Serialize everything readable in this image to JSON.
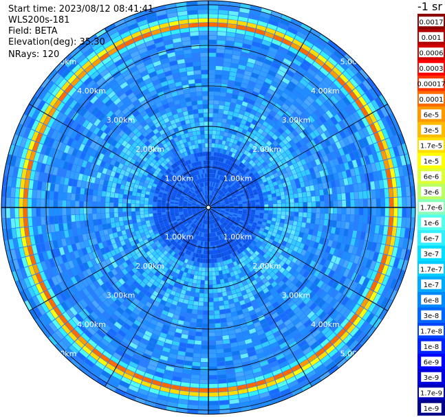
{
  "header": {
    "start_time": "Start time: 2023/08/12 08:41:41",
    "station": "WLS200s-181",
    "field": "Field: BETA",
    "elevation": "Elevation(deg): 35.30",
    "nrays": "NRays: 120"
  },
  "colorbar": {
    "title": "-1 sr",
    "labels": [
      "0.0017",
      "0.001",
      "0.0006",
      "0.0003",
      "0.00017",
      "0.0001",
      "6e-5",
      "3e-5",
      "1.7e-5",
      "1e-5",
      "6e-6",
      "3e-6",
      "1.7e-6",
      "1e-6",
      "6e-7",
      "3e-7",
      "1.7e-7",
      "1e-7",
      "6e-8",
      "3e-8",
      "1.7e-8",
      "1e-8",
      "6e-9",
      "3e-9",
      "1.7e-9",
      "1e-9"
    ],
    "colors": [
      "#8b0000",
      "#b30000",
      "#d40000",
      "#ff0000",
      "#ff3300",
      "#ff6a00",
      "#ff9900",
      "#ffbb00",
      "#ffdd00",
      "#ffff00",
      "#ddff33",
      "#bbff66",
      "#88ffbb",
      "#55ffee",
      "#33eeff",
      "#00ddff",
      "#00ccff",
      "#00aaff",
      "#0088ff",
      "#0066ff",
      "#0044ff",
      "#0022ff",
      "#0000ff",
      "#0000dd",
      "#0000bb",
      "#000088"
    ]
  },
  "chart_data": {
    "type": "ppi",
    "rays": 120,
    "range_rings_km": [
      1,
      2,
      3,
      4,
      5
    ],
    "ring_labels": [
      "1.00km",
      "2.00km",
      "3.00km",
      "4.00km",
      "5.00km"
    ],
    "max_range_km": 5.1,
    "grid": true,
    "spoke_spacing_deg": 30
  }
}
